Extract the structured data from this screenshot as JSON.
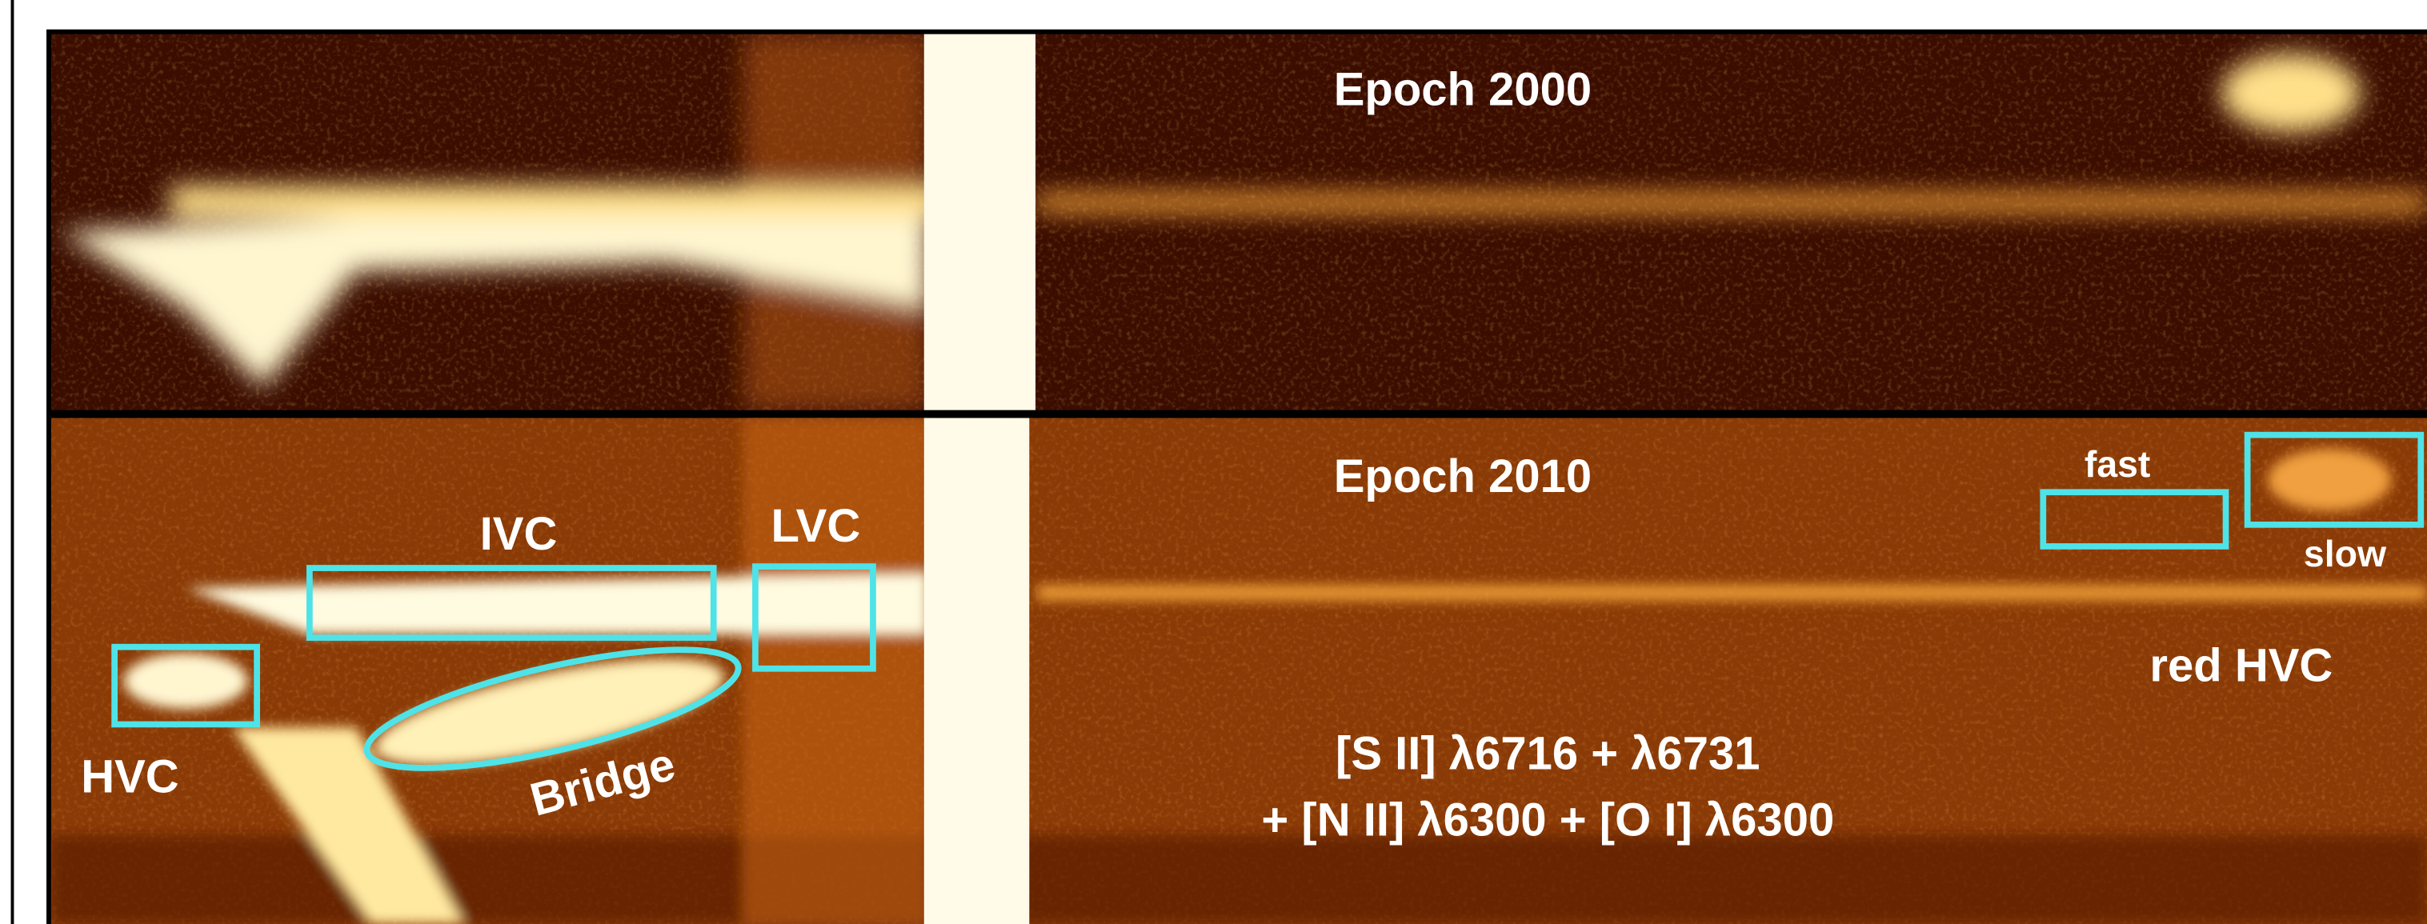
{
  "panels": [
    {
      "label": "Epoch 2000"
    },
    {
      "label": "Epoch 2010",
      "annotations": {
        "ivc": "IVC",
        "lvc": "LVC",
        "hvc": "HVC",
        "bridge": "Bridge",
        "fast": "fast",
        "slow": "slow",
        "red_hvc": "red HVC"
      },
      "caption": [
        "[S II] λ6716 + λ6731",
        "+ [N II] λ6300 + [O I] λ6300"
      ]
    }
  ]
}
